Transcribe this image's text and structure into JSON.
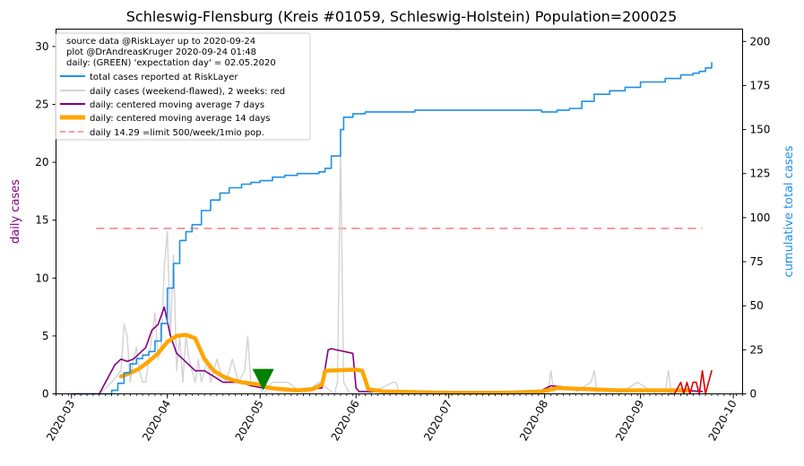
{
  "chart_data": {
    "type": "line",
    "title": "Schleswig-Flensburg (Kreis #01059, Schleswig-Holstein) Population=200025",
    "ylabel_left": "daily cases",
    "ylabel_right": "cumulative total cases",
    "xlabel": "",
    "ylim_left": [
      0,
      31.5
    ],
    "ylim_right": [
      0,
      207
    ],
    "yticks_left": [
      0,
      5,
      10,
      15,
      20,
      25,
      30
    ],
    "yticks_right": [
      0,
      25,
      50,
      75,
      100,
      125,
      150,
      175,
      200
    ],
    "x_start": "2020-02-25",
    "x_end": "2020-10-04",
    "xticks": [
      "2020-03",
      "2020-04",
      "2020-05",
      "2020-06",
      "2020-07",
      "2020-08",
      "2020-09",
      "2020-10"
    ],
    "legend_header": [
      "source data @RiskLayer up to 2020-09-24",
      "plot @DrAndreasKruger 2020-09-24 01:48",
      "daily: (GREEN) 'expectation day' = 02.05.2020"
    ],
    "legend_entries": [
      "total cases reported at RiskLayer",
      "daily cases (weekend-flawed), 2 weeks: red",
      "daily: centered moving average 7 days",
      "daily: centered moving average 14 days",
      "daily 14.29 =limit 500/week/1mio pop."
    ],
    "colors": {
      "total": "#1f8fe5",
      "daily": "#d3d3d3",
      "daily_recent": "#e00000",
      "ma7": "#800080",
      "ma14": "#ffa500",
      "limit": "#f08080",
      "expectation": "#008000",
      "left_label": "#800080",
      "right_label": "#1f8fe5"
    },
    "limit_value": 14.29,
    "limit_range": [
      "2020-03-09",
      "2020-09-21"
    ],
    "expectation_day": "2020-05-02",
    "series": [
      {
        "name": "total cases reported at RiskLayer",
        "axis": "right",
        "dates": [
          "2020-03-01",
          "2020-03-08",
          "2020-03-12",
          "2020-03-14",
          "2020-03-16",
          "2020-03-18",
          "2020-03-20",
          "2020-03-22",
          "2020-03-24",
          "2020-03-26",
          "2020-03-28",
          "2020-03-30",
          "2020-04-01",
          "2020-04-03",
          "2020-04-05",
          "2020-04-07",
          "2020-04-09",
          "2020-04-12",
          "2020-04-15",
          "2020-04-18",
          "2020-04-21",
          "2020-04-25",
          "2020-04-28",
          "2020-05-01",
          "2020-05-05",
          "2020-05-09",
          "2020-05-13",
          "2020-05-17",
          "2020-05-20",
          "2020-05-22",
          "2020-05-24",
          "2020-05-27",
          "2020-05-28",
          "2020-05-31",
          "2020-06-04",
          "2020-06-10",
          "2020-06-20",
          "2020-06-30",
          "2020-07-10",
          "2020-07-20",
          "2020-07-31",
          "2020-08-05",
          "2020-08-09",
          "2020-08-13",
          "2020-08-17",
          "2020-08-22",
          "2020-08-27",
          "2020-09-01",
          "2020-09-09",
          "2020-09-14",
          "2020-09-18",
          "2020-09-20",
          "2020-09-22",
          "2020-09-24"
        ],
        "values": [
          0,
          0,
          0,
          2,
          6,
          12,
          17,
          20,
          22,
          24,
          30,
          40,
          60,
          74,
          87,
          92,
          96,
          104,
          110,
          114,
          117,
          119,
          120,
          121,
          123,
          124,
          125,
          125,
          126,
          128,
          135,
          150,
          157,
          159,
          160,
          160,
          161,
          161,
          161,
          161,
          160,
          161,
          162,
          166,
          170,
          172,
          174,
          177,
          179,
          181,
          182,
          183,
          185,
          188
        ]
      },
      {
        "name": "daily cases (weekend-flawed), 2 weeks: red",
        "axis": "left",
        "dates": [
          "2020-03-01",
          "2020-03-10",
          "2020-03-14",
          "2020-03-17",
          "2020-03-18",
          "2020-03-19",
          "2020-03-20",
          "2020-03-21",
          "2020-03-22",
          "2020-03-23",
          "2020-03-24",
          "2020-03-25",
          "2020-03-26",
          "2020-03-27",
          "2020-03-28",
          "2020-03-29",
          "2020-03-30",
          "2020-03-31",
          "2020-04-01",
          "2020-04-02",
          "2020-04-03",
          "2020-04-04",
          "2020-04-05",
          "2020-04-06",
          "2020-04-07",
          "2020-04-08",
          "2020-04-09",
          "2020-04-10",
          "2020-04-11",
          "2020-04-12",
          "2020-04-13",
          "2020-04-14",
          "2020-04-15",
          "2020-04-16",
          "2020-04-17",
          "2020-04-18",
          "2020-04-20",
          "2020-04-22",
          "2020-04-24",
          "2020-04-26",
          "2020-04-27",
          "2020-04-28",
          "2020-04-30",
          "2020-05-02",
          "2020-05-05",
          "2020-05-10",
          "2020-05-15",
          "2020-05-20",
          "2020-05-25",
          "2020-05-26",
          "2020-05-27",
          "2020-05-28",
          "2020-05-30",
          "2020-06-05",
          "2020-06-13",
          "2020-06-14",
          "2020-06-15",
          "2020-06-20",
          "2020-07-15",
          "2020-08-02",
          "2020-08-03",
          "2020-08-04",
          "2020-08-10",
          "2020-08-16",
          "2020-08-17",
          "2020-08-18",
          "2020-08-25",
          "2020-08-31",
          "2020-09-06",
          "2020-09-09",
          "2020-09-10",
          "2020-09-11"
        ],
        "values": [
          0,
          0,
          1,
          2,
          6,
          5,
          1,
          3,
          4,
          2,
          1,
          1,
          3,
          5,
          7,
          3,
          4,
          11,
          14,
          5,
          12,
          2,
          5,
          1,
          5,
          3,
          2,
          1,
          3,
          1,
          2,
          3,
          1,
          2,
          3,
          2,
          1,
          3,
          1,
          2,
          5,
          1,
          1,
          0,
          1,
          1,
          0,
          1,
          0,
          1,
          21,
          1,
          0,
          0,
          1,
          1,
          0,
          0,
          0,
          0,
          2,
          0,
          0,
          1,
          2,
          0,
          0,
          1,
          0,
          0,
          2,
          0
        ]
      },
      {
        "name": "daily cases, last 2 weeks (red)",
        "axis": "left",
        "dates": [
          "2020-09-10",
          "2020-09-12",
          "2020-09-14",
          "2020-09-15",
          "2020-09-16",
          "2020-09-17",
          "2020-09-18",
          "2020-09-19",
          "2020-09-20",
          "2020-09-21",
          "2020-09-22",
          "2020-09-23",
          "2020-09-24"
        ],
        "values": [
          0,
          0,
          1,
          0,
          1,
          0,
          1,
          1,
          0,
          2,
          0,
          1,
          2
        ]
      },
      {
        "name": "daily: centered moving average 7 days",
        "axis": "left",
        "dates": [
          "2020-03-01",
          "2020-03-10",
          "2020-03-13",
          "2020-03-15",
          "2020-03-17",
          "2020-03-19",
          "2020-03-21",
          "2020-03-23",
          "2020-03-25",
          "2020-03-27",
          "2020-03-29",
          "2020-03-31",
          "2020-04-02",
          "2020-04-04",
          "2020-04-06",
          "2020-04-08",
          "2020-04-10",
          "2020-04-13",
          "2020-04-16",
          "2020-04-19",
          "2020-04-22",
          "2020-04-25",
          "2020-04-28",
          "2020-05-02",
          "2020-05-05",
          "2020-05-08",
          "2020-05-11",
          "2020-05-14",
          "2020-05-17",
          "2020-05-21",
          "2020-05-23",
          "2020-05-24",
          "2020-05-31",
          "2020-06-01",
          "2020-06-02",
          "2020-06-10",
          "2020-06-30",
          "2020-07-20",
          "2020-07-31",
          "2020-08-03",
          "2020-08-15",
          "2020-08-25",
          "2020-09-05",
          "2020-09-15",
          "2020-09-21"
        ],
        "values": [
          0,
          0,
          1.5,
          2.5,
          3,
          2.8,
          3,
          3.5,
          4,
          5.5,
          6,
          7.5,
          5,
          3.5,
          3,
          2.5,
          2,
          2,
          1.5,
          1,
          1,
          1,
          0.7,
          0.5,
          0.5,
          0.4,
          0.4,
          0.3,
          0.4,
          0.5,
          3.8,
          3.9,
          3.5,
          0.5,
          0.2,
          0.2,
          0.1,
          0.1,
          0.3,
          0.7,
          0.4,
          0.3,
          0.3,
          0.3,
          0.2
        ]
      },
      {
        "name": "daily: centered moving average 14 days",
        "axis": "left",
        "dates": [
          "2020-03-17",
          "2020-03-20",
          "2020-03-23",
          "2020-03-26",
          "2020-03-29",
          "2020-04-01",
          "2020-04-04",
          "2020-04-07",
          "2020-04-10",
          "2020-04-13",
          "2020-04-16",
          "2020-04-19",
          "2020-04-22",
          "2020-04-25",
          "2020-04-28",
          "2020-05-01",
          "2020-05-04",
          "2020-05-08",
          "2020-05-13",
          "2020-05-18",
          "2020-05-21",
          "2020-05-22",
          "2020-06-01",
          "2020-06-03",
          "2020-06-05",
          "2020-06-10",
          "2020-06-30",
          "2020-07-20",
          "2020-07-31",
          "2020-08-05",
          "2020-08-15",
          "2020-08-25",
          "2020-09-05",
          "2020-09-15",
          "2020-09-17"
        ],
        "values": [
          1.5,
          1.8,
          2.2,
          2.8,
          3.5,
          4.5,
          5,
          5.1,
          4.8,
          3,
          2,
          1.5,
          1.2,
          1,
          0.9,
          0.8,
          0.5,
          0.4,
          0.3,
          0.4,
          0.8,
          2.0,
          2.1,
          2.0,
          0.4,
          0.2,
          0.1,
          0.1,
          0.2,
          0.5,
          0.4,
          0.3,
          0.3,
          0.3,
          0.3
        ]
      }
    ]
  }
}
